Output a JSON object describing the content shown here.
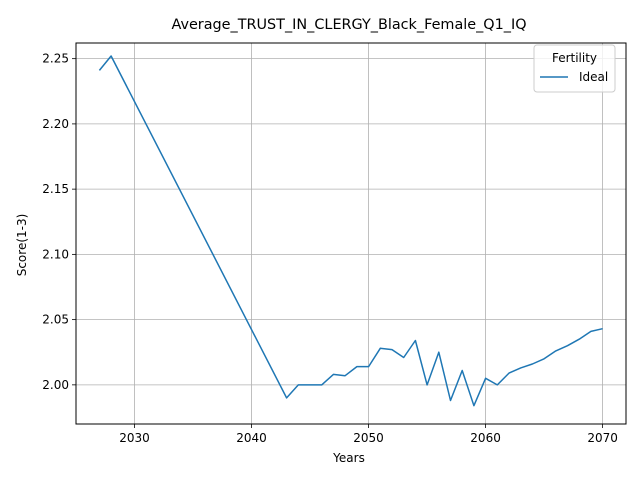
{
  "chart_data": {
    "type": "line",
    "title": "Average_TRUST_IN_CLERGY_Black_Female_Q1_IQ",
    "xlabel": "Years",
    "ylabel": "Score(1-3)",
    "xlim": [
      2025,
      2072
    ],
    "ylim": [
      1.97,
      2.262
    ],
    "xticks": [
      2030,
      2040,
      2050,
      2060,
      2070
    ],
    "yticks": [
      2.0,
      2.05,
      2.1,
      2.15,
      2.2,
      2.25
    ],
    "xtick_labels": [
      "2030",
      "2040",
      "2050",
      "2060",
      "2070"
    ],
    "ytick_labels": [
      "2.00",
      "2.05",
      "2.10",
      "2.15",
      "2.20",
      "2.25"
    ],
    "grid": true,
    "legend": {
      "title": "Fertility",
      "position": "top-right"
    },
    "series": [
      {
        "name": "Ideal",
        "color": "#1f77b4",
        "x": [
          2027,
          2028,
          2043,
          2044,
          2045,
          2046,
          2047,
          2048,
          2049,
          2050,
          2051,
          2052,
          2053,
          2054,
          2055,
          2056,
          2057,
          2058,
          2059,
          2060,
          2061,
          2062,
          2063,
          2064,
          2065,
          2066,
          2067,
          2068,
          2069,
          2070
        ],
        "y": [
          2.241,
          2.252,
          1.99,
          2.0,
          2.0,
          2.0,
          2.008,
          2.007,
          2.014,
          2.014,
          2.028,
          2.027,
          2.021,
          2.034,
          2.0,
          2.025,
          1.988,
          2.011,
          1.984,
          2.005,
          2.0,
          2.009,
          2.013,
          2.016,
          2.02,
          2.026,
          2.03,
          2.035,
          2.041,
          2.043
        ]
      }
    ]
  }
}
